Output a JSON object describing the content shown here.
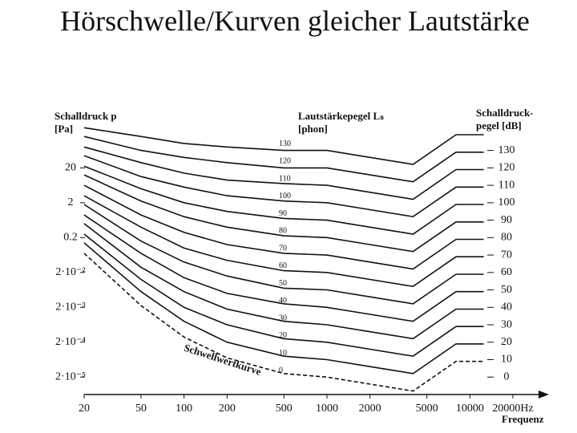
{
  "chart_data": {
    "type": "line",
    "title": "Hörschwelle/Kurven gleicher Lautstärke",
    "y2_label": "Schalldruck p [Pa]",
    "series_label": "Lautstärkepegel Lₛ [phon]",
    "y_label": "Schalldruck-pegel [dB]",
    "x_label": "Frequenz",
    "annotation": "Schwellwertkurve",
    "x_scale": "log",
    "y2_scale": "log",
    "xlim": [
      20,
      20000
    ],
    "xticks": [
      20,
      50,
      100,
      200,
      500,
      1000,
      2000,
      5000,
      10000,
      {
        "value": 20000,
        "label": "20000Hz"
      }
    ],
    "ylim": [
      -10,
      145
    ],
    "yticks": [
      0,
      10,
      20,
      30,
      40,
      50,
      60,
      70,
      80,
      90,
      100,
      110,
      120,
      130
    ],
    "y2lim": [
      6.32e-06,
      355.7
    ],
    "y2ticks": [
      20,
      2,
      0.2,
      {
        "value": 0.02,
        "label": "2·10⁻²"
      },
      {
        "value": 0.002,
        "label": "2·10⁻³"
      },
      {
        "value": 0.0002,
        "label": "2·10⁻⁴"
      },
      {
        "value": 2e-05,
        "label": "2·10⁻⁵"
      }
    ],
    "grid": false,
    "x": [
      20,
      50,
      100,
      200,
      500,
      1000,
      2000,
      4000,
      8000,
      12500
    ],
    "series": [
      {
        "name": "0",
        "color": "#111",
        "dashed": true,
        "values": [
          71,
          41,
          23,
          11,
          2,
          0,
          -4,
          -8,
          9,
          9
        ]
      },
      {
        "name": "10",
        "color": "#111",
        "values": [
          77,
          49,
          32,
          20,
          12,
          10,
          6,
          2,
          19,
          19
        ]
      },
      {
        "name": "20",
        "color": "#111",
        "values": [
          82,
          56,
          40,
          30,
          22,
          20,
          16,
          12,
          29,
          29
        ]
      },
      {
        "name": "30",
        "color": "#111",
        "values": [
          88,
          63,
          49,
          39,
          32,
          30,
          26,
          22,
          39,
          39
        ]
      },
      {
        "name": "40",
        "color": "#111",
        "values": [
          93,
          71,
          57,
          48,
          42,
          40,
          36,
          32,
          49,
          49
        ]
      },
      {
        "name": "50",
        "color": "#111",
        "values": [
          99,
          78,
          66,
          58,
          51,
          50,
          46,
          42,
          59,
          59
        ]
      },
      {
        "name": "60",
        "color": "#111",
        "values": [
          104,
          86,
          74,
          67,
          61,
          60,
          56,
          52,
          69,
          69
        ]
      },
      {
        "name": "70",
        "color": "#111",
        "values": [
          110,
          93,
          83,
          76,
          71,
          70,
          66,
          62,
          79,
          79
        ]
      },
      {
        "name": "80",
        "color": "#111",
        "values": [
          116,
          101,
          92,
          86,
          81,
          80,
          76,
          72,
          89,
          89
        ]
      },
      {
        "name": "90",
        "color": "#111",
        "values": [
          121,
          108,
          100,
          95,
          91,
          90,
          86,
          82,
          99,
          99
        ]
      },
      {
        "name": "100",
        "color": "#111",
        "values": [
          127,
          115,
          109,
          104,
          101,
          100,
          96,
          92,
          109,
          109
        ]
      },
      {
        "name": "110",
        "color": "#111",
        "values": [
          132,
          123,
          117,
          113,
          111,
          110,
          106,
          102,
          119,
          119
        ]
      },
      {
        "name": "120",
        "color": "#111",
        "values": [
          138,
          130,
          126,
          123,
          120,
          120,
          116,
          112,
          129,
          129
        ]
      },
      {
        "name": "130",
        "color": "#111",
        "values": [
          143,
          138,
          134,
          132,
          130,
          130,
          126,
          122,
          139,
          139
        ]
      }
    ]
  }
}
